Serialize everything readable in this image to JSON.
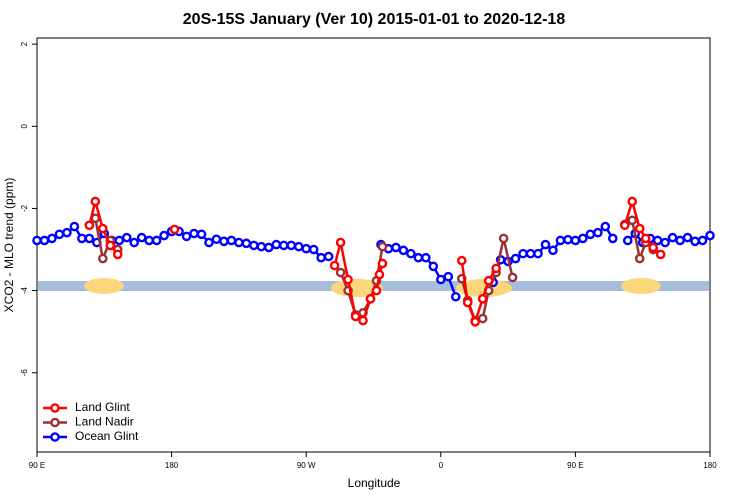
{
  "chart_data": {
    "type": "line",
    "title": "20S-15S January (Ver 10)   2015-01-01 to 2020-12-18",
    "x_label": "Longitude",
    "y_label": "XCO2 - MLO trend (ppm)",
    "xlim": [
      90,
      540
    ],
    "xticks": [
      {
        "value": 90,
        "label": "90 E"
      },
      180,
      {
        "value": 270,
        "label": "90 W"
      },
      {
        "value": 360,
        "label": "0"
      },
      {
        "value": 450,
        "label": "90 E"
      },
      {
        "value": 540,
        "label": "180"
      }
    ],
    "ylim": [
      -7.93,
      2.15
    ],
    "yticks": [
      2,
      0,
      -2,
      -4,
      -6
    ],
    "legend": "bottom-left",
    "series": [
      {
        "name": "Ocean Glint",
        "color": "#0000ff",
        "x": [
          90,
          95,
          100,
          105,
          110,
          115,
          120,
          125,
          130,
          135,
          140,
          145,
          150,
          155,
          160,
          165,
          170,
          175,
          180,
          185,
          190,
          195,
          200,
          205,
          210,
          215,
          220,
          225,
          230,
          235,
          240,
          245,
          250,
          255,
          260,
          265,
          270,
          275,
          280,
          285,
          290,
          320,
          325,
          330,
          335,
          340,
          345,
          350,
          355,
          360,
          365,
          370,
          375,
          395,
          400,
          405,
          410,
          415,
          420,
          425,
          430,
          435,
          440,
          445,
          450,
          455,
          460,
          465,
          470,
          475,
          480,
          485,
          490,
          495,
          500,
          505,
          510,
          515,
          520,
          525,
          530,
          535,
          540
        ],
        "values": [
          -2.78,
          -2.78,
          -2.73,
          -2.63,
          -2.59,
          -2.44,
          -2.73,
          -2.73,
          -2.83,
          -2.61,
          -2.78,
          -2.78,
          -2.71,
          -2.83,
          -2.71,
          -2.78,
          -2.78,
          -2.66,
          -2.56,
          -2.56,
          -2.68,
          -2.61,
          -2.63,
          -2.83,
          -2.75,
          -2.8,
          -2.78,
          -2.83,
          -2.85,
          -2.9,
          -2.93,
          -2.95,
          -2.88,
          -2.9,
          -2.9,
          -2.93,
          -2.98,
          -3.0,
          -3.2,
          -3.17,
          null,
          -2.88,
          -2.98,
          -2.95,
          -3.02,
          -3.1,
          -3.2,
          -3.2,
          -3.41,
          -3.73,
          -3.66,
          -4.15,
          null,
          -3.8,
          -3.25,
          -3.29,
          -3.22,
          -3.1,
          -3.1,
          -3.1,
          -2.88,
          -3.02,
          -2.78,
          -2.76,
          -2.78,
          -2.73,
          -2.63,
          -2.59,
          -2.44,
          -2.73,
          null,
          -2.78,
          -2.61,
          -2.83,
          -2.73,
          -2.78,
          -2.83,
          -2.71,
          -2.78,
          -2.71,
          -2.8,
          -2.78,
          -2.66
        ]
      },
      {
        "name": "Land Nadir",
        "color": "#993333",
        "x": [
          125,
          129,
          134,
          139,
          144,
          200,
          293,
          298,
          303,
          308,
          313,
          317,
          321,
          350,
          374,
          378,
          383,
          388,
          392,
          397,
          402,
          408,
          450,
          483,
          488,
          493,
          497,
          502
        ],
        "values": [
          -2.41,
          -2.24,
          -3.22,
          -2.78,
          -3.0,
          null,
          -3.56,
          -4.0,
          -4.59,
          -4.54,
          -4.2,
          -3.76,
          -2.93,
          null,
          -3.71,
          -4.24,
          -4.73,
          -4.68,
          -4.0,
          -3.56,
          -2.73,
          -3.68,
          null,
          -2.39,
          -2.29,
          -3.22,
          -2.83,
          -3.0
        ]
      },
      {
        "name": "Land Glint",
        "color": "#ff0000",
        "x": [
          125,
          129,
          134,
          139,
          144,
          160,
          182,
          200,
          289,
          293,
          298,
          303,
          308,
          313,
          317,
          319,
          321,
          350,
          374,
          378,
          383,
          388,
          392,
          397,
          450,
          483,
          488,
          493,
          497,
          502,
          507
        ],
        "values": [
          -2.41,
          -1.83,
          -2.49,
          -2.9,
          -3.12,
          null,
          -2.51,
          null,
          -3.39,
          -2.83,
          -3.73,
          -4.63,
          -4.73,
          -4.2,
          -4.0,
          -3.61,
          -3.34,
          null,
          -3.27,
          -4.29,
          -4.76,
          -4.2,
          -3.76,
          -3.46,
          null,
          -2.41,
          -1.83,
          -2.49,
          -2.73,
          -2.95,
          -3.12
        ]
      }
    ]
  }
}
